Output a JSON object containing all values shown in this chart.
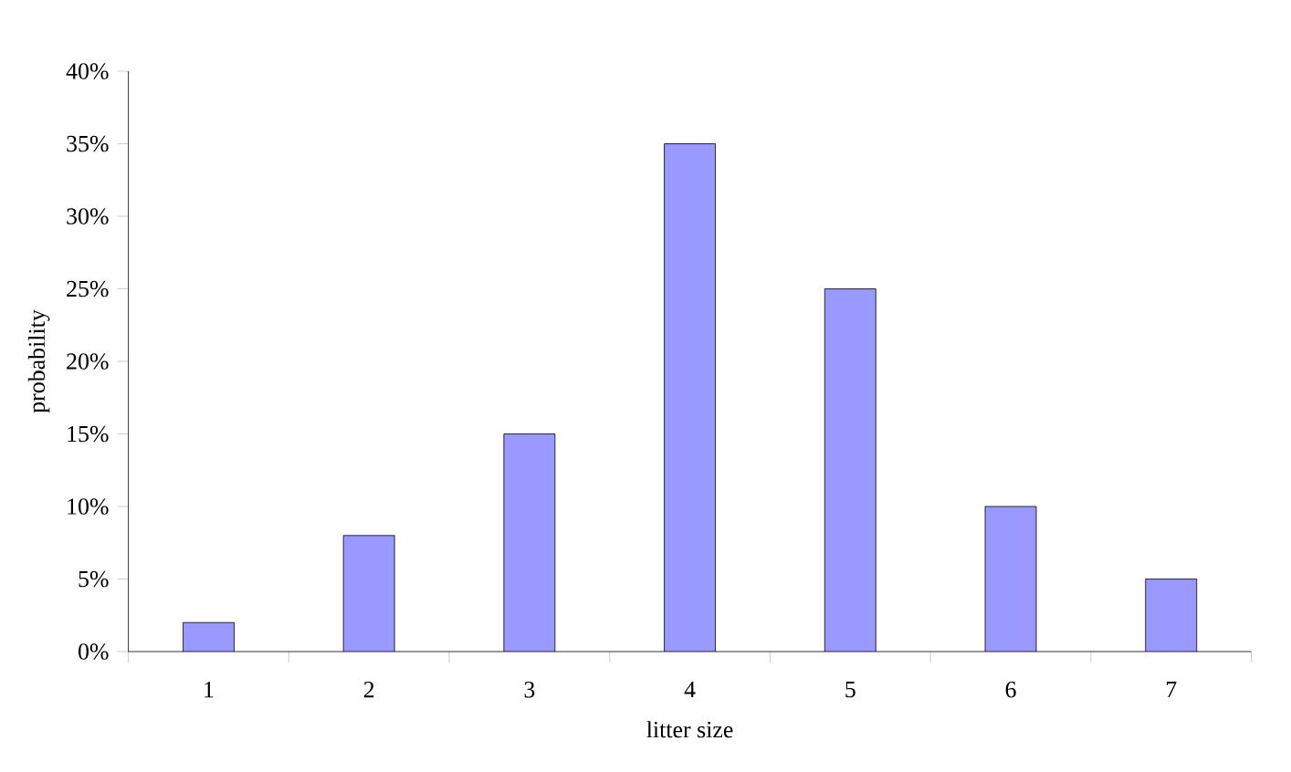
{
  "chart_data": {
    "type": "bar",
    "xlabel": "litter size",
    "ylabel": "probability",
    "categories": [
      "1",
      "2",
      "3",
      "4",
      "5",
      "6",
      "7"
    ],
    "values": [
      2,
      8,
      15,
      35,
      25,
      10,
      5
    ],
    "color": "#9999ff",
    "ylim": [
      0,
      40
    ],
    "yticks": [
      {
        "value": 0,
        "label": "0%"
      },
      {
        "value": 5,
        "label": "5%"
      },
      {
        "value": 10,
        "label": "10%"
      },
      {
        "value": 15,
        "label": "15%"
      },
      {
        "value": 20,
        "label": "20%"
      },
      {
        "value": 25,
        "label": "25%"
      },
      {
        "value": 30,
        "label": "30%"
      },
      {
        "value": 35,
        "label": "35%"
      },
      {
        "value": 40,
        "label": "40%"
      }
    ],
    "grid": false
  }
}
